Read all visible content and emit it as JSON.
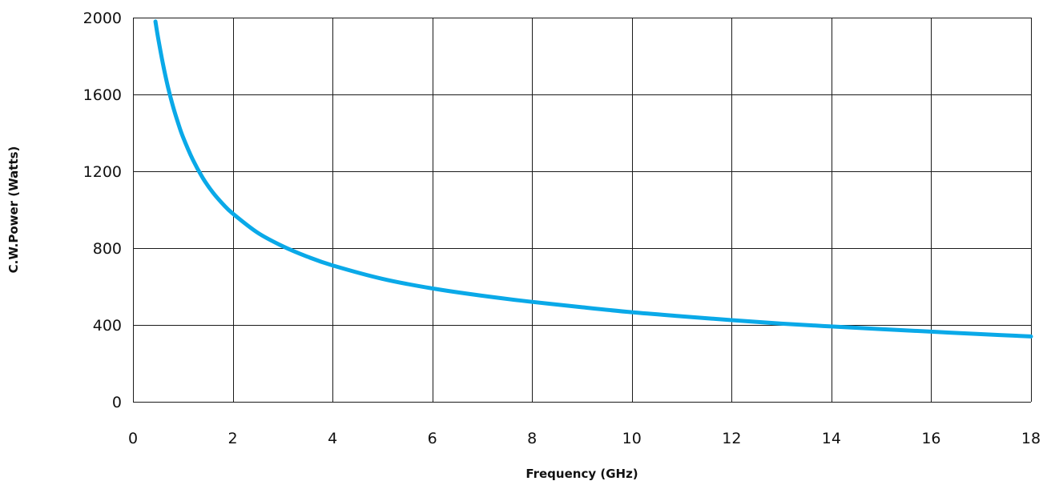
{
  "chart_data": {
    "type": "line",
    "xlabel": "Frequency (GHz)",
    "ylabel": "C.W.Power (Watts)",
    "xlim": [
      0,
      18
    ],
    "ylim": [
      0,
      2000
    ],
    "x_ticks": [
      0,
      2,
      4,
      6,
      8,
      10,
      12,
      14,
      16,
      18
    ],
    "y_ticks": [
      0,
      400,
      800,
      1200,
      1600,
      2000
    ],
    "grid": true,
    "legend": "none",
    "series": [
      {
        "color": "#0aa9e8",
        "x": [
          0.45,
          0.5,
          0.6,
          0.7,
          0.8,
          0.9,
          1.0,
          1.2,
          1.4,
          1.6,
          1.8,
          2.0,
          2.5,
          3.0,
          3.5,
          4.0,
          5.0,
          6.0,
          7.0,
          8.0,
          9.0,
          10.0,
          11.0,
          12.0,
          13.0,
          14.0,
          15.0,
          16.0,
          17.0,
          18.0
        ],
        "values": [
          1980,
          1900,
          1760,
          1640,
          1540,
          1455,
          1380,
          1260,
          1165,
          1090,
          1030,
          980,
          880,
          810,
          755,
          710,
          640,
          590,
          552,
          520,
          492,
          466,
          445,
          425,
          407,
          392,
          378,
          365,
          352,
          340
        ]
      }
    ]
  }
}
